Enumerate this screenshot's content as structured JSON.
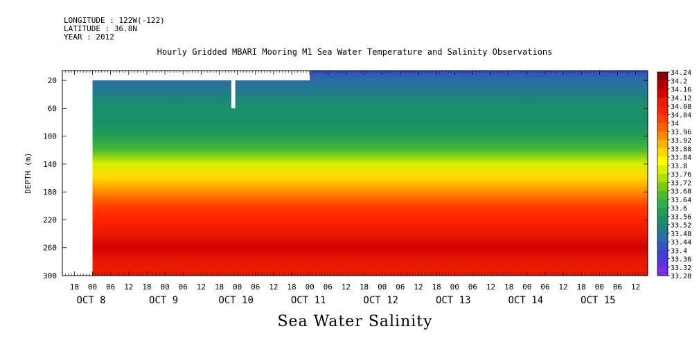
{
  "header": {
    "longitude": "LONGITUDE : 122W(-122)",
    "latitude": "LATITUDE : 36.8N",
    "year": "YEAR : 2012"
  },
  "chart_title": "Hourly Gridded MBARI Mooring M1 Sea Water Temperature and Salinity Observations",
  "bottom_title": "Sea Water Salinity",
  "chart_data": {
    "type": "heatmap",
    "title": "Hourly Gridded MBARI Mooring M1 Sea Water Temperature and Salinity Observations",
    "subtitle": "Sea Water Salinity",
    "ylabel": "DEPTH (m)",
    "xlabel": "",
    "x_range_hours": [
      -10,
      184
    ],
    "ylim": [
      300,
      6
    ],
    "y_ticks": [
      20,
      60,
      100,
      140,
      180,
      220,
      260,
      300
    ],
    "hour_ticks": [
      {
        "h": -6,
        "label": "18"
      },
      {
        "h": 0,
        "label": "00"
      },
      {
        "h": 6,
        "label": "06"
      },
      {
        "h": 12,
        "label": "12"
      },
      {
        "h": 18,
        "label": "18"
      },
      {
        "h": 24,
        "label": "00"
      },
      {
        "h": 30,
        "label": "06"
      },
      {
        "h": 36,
        "label": "12"
      },
      {
        "h": 42,
        "label": "18"
      },
      {
        "h": 48,
        "label": "00"
      },
      {
        "h": 54,
        "label": "06"
      },
      {
        "h": 60,
        "label": "12"
      },
      {
        "h": 66,
        "label": "18"
      },
      {
        "h": 72,
        "label": "00"
      },
      {
        "h": 78,
        "label": "06"
      },
      {
        "h": 84,
        "label": "12"
      },
      {
        "h": 90,
        "label": "18"
      },
      {
        "h": 96,
        "label": "00"
      },
      {
        "h": 102,
        "label": "06"
      },
      {
        "h": 108,
        "label": "12"
      },
      {
        "h": 114,
        "label": "18"
      },
      {
        "h": 120,
        "label": "00"
      },
      {
        "h": 126,
        "label": "06"
      },
      {
        "h": 132,
        "label": "12"
      },
      {
        "h": 138,
        "label": "18"
      },
      {
        "h": 144,
        "label": "00"
      },
      {
        "h": 150,
        "label": "06"
      },
      {
        "h": 156,
        "label": "12"
      },
      {
        "h": 162,
        "label": "18"
      },
      {
        "h": 168,
        "label": "00"
      },
      {
        "h": 174,
        "label": "06"
      },
      {
        "h": 180,
        "label": "12"
      }
    ],
    "day_labels": [
      {
        "h": 0,
        "label": "OCT  8"
      },
      {
        "h": 24,
        "label": "OCT  9"
      },
      {
        "h": 48,
        "label": "OCT 10"
      },
      {
        "h": 72,
        "label": "OCT 11"
      },
      {
        "h": 96,
        "label": "OCT 12"
      },
      {
        "h": 120,
        "label": "OCT 13"
      },
      {
        "h": 144,
        "label": "OCT 14"
      },
      {
        "h": 168,
        "label": "OCT 15"
      }
    ],
    "colorbar_levels": [
      34.24,
      34.2,
      34.16,
      34.12,
      34.08,
      34.04,
      34,
      33.96,
      33.92,
      33.88,
      33.84,
      33.8,
      33.76,
      33.72,
      33.68,
      33.64,
      33.6,
      33.56,
      33.52,
      33.48,
      33.44,
      33.4,
      33.36,
      33.32,
      33.28
    ],
    "colorbar_colors": [
      "#8b0000",
      "#b30000",
      "#d40000",
      "#e81a00",
      "#ff2200",
      "#ff3f00",
      "#ff6000",
      "#ff8a00",
      "#ffb400",
      "#ffd800",
      "#ffff00",
      "#d8f000",
      "#a8e000",
      "#78cc10",
      "#4cbb30",
      "#2fae45",
      "#1f9e55",
      "#1a906a",
      "#207f85",
      "#2a6ea5",
      "#3455c4",
      "#3f3ed6",
      "#5a32e0",
      "#7a2ee8",
      "#9a2af0"
    ],
    "depth_profile": [
      {
        "depth": 10,
        "salinity": 33.43
      },
      {
        "depth": 20,
        "salinity": 33.48
      },
      {
        "depth": 40,
        "salinity": 33.53
      },
      {
        "depth": 60,
        "salinity": 33.56
      },
      {
        "depth": 80,
        "salinity": 33.58
      },
      {
        "depth": 100,
        "salinity": 33.6
      },
      {
        "depth": 120,
        "salinity": 33.68
      },
      {
        "depth": 140,
        "salinity": 33.78
      },
      {
        "depth": 160,
        "salinity": 33.88
      },
      {
        "depth": 180,
        "salinity": 33.98
      },
      {
        "depth": 200,
        "salinity": 34.04
      },
      {
        "depth": 220,
        "salinity": 34.08
      },
      {
        "depth": 240,
        "salinity": 34.12
      },
      {
        "depth": 260,
        "salinity": 34.16
      },
      {
        "depth": 280,
        "salinity": 34.13
      },
      {
        "depth": 300,
        "salinity": 34.11
      }
    ],
    "no_data_regions": [
      {
        "h0": -10,
        "h1": 0,
        "d0": 6,
        "d1": 300
      },
      {
        "h0": 0,
        "h1": 72,
        "d0": 6,
        "d1": 20
      },
      {
        "h0": 46,
        "h1": 47.3,
        "d0": 20,
        "d1": 60
      }
    ]
  }
}
